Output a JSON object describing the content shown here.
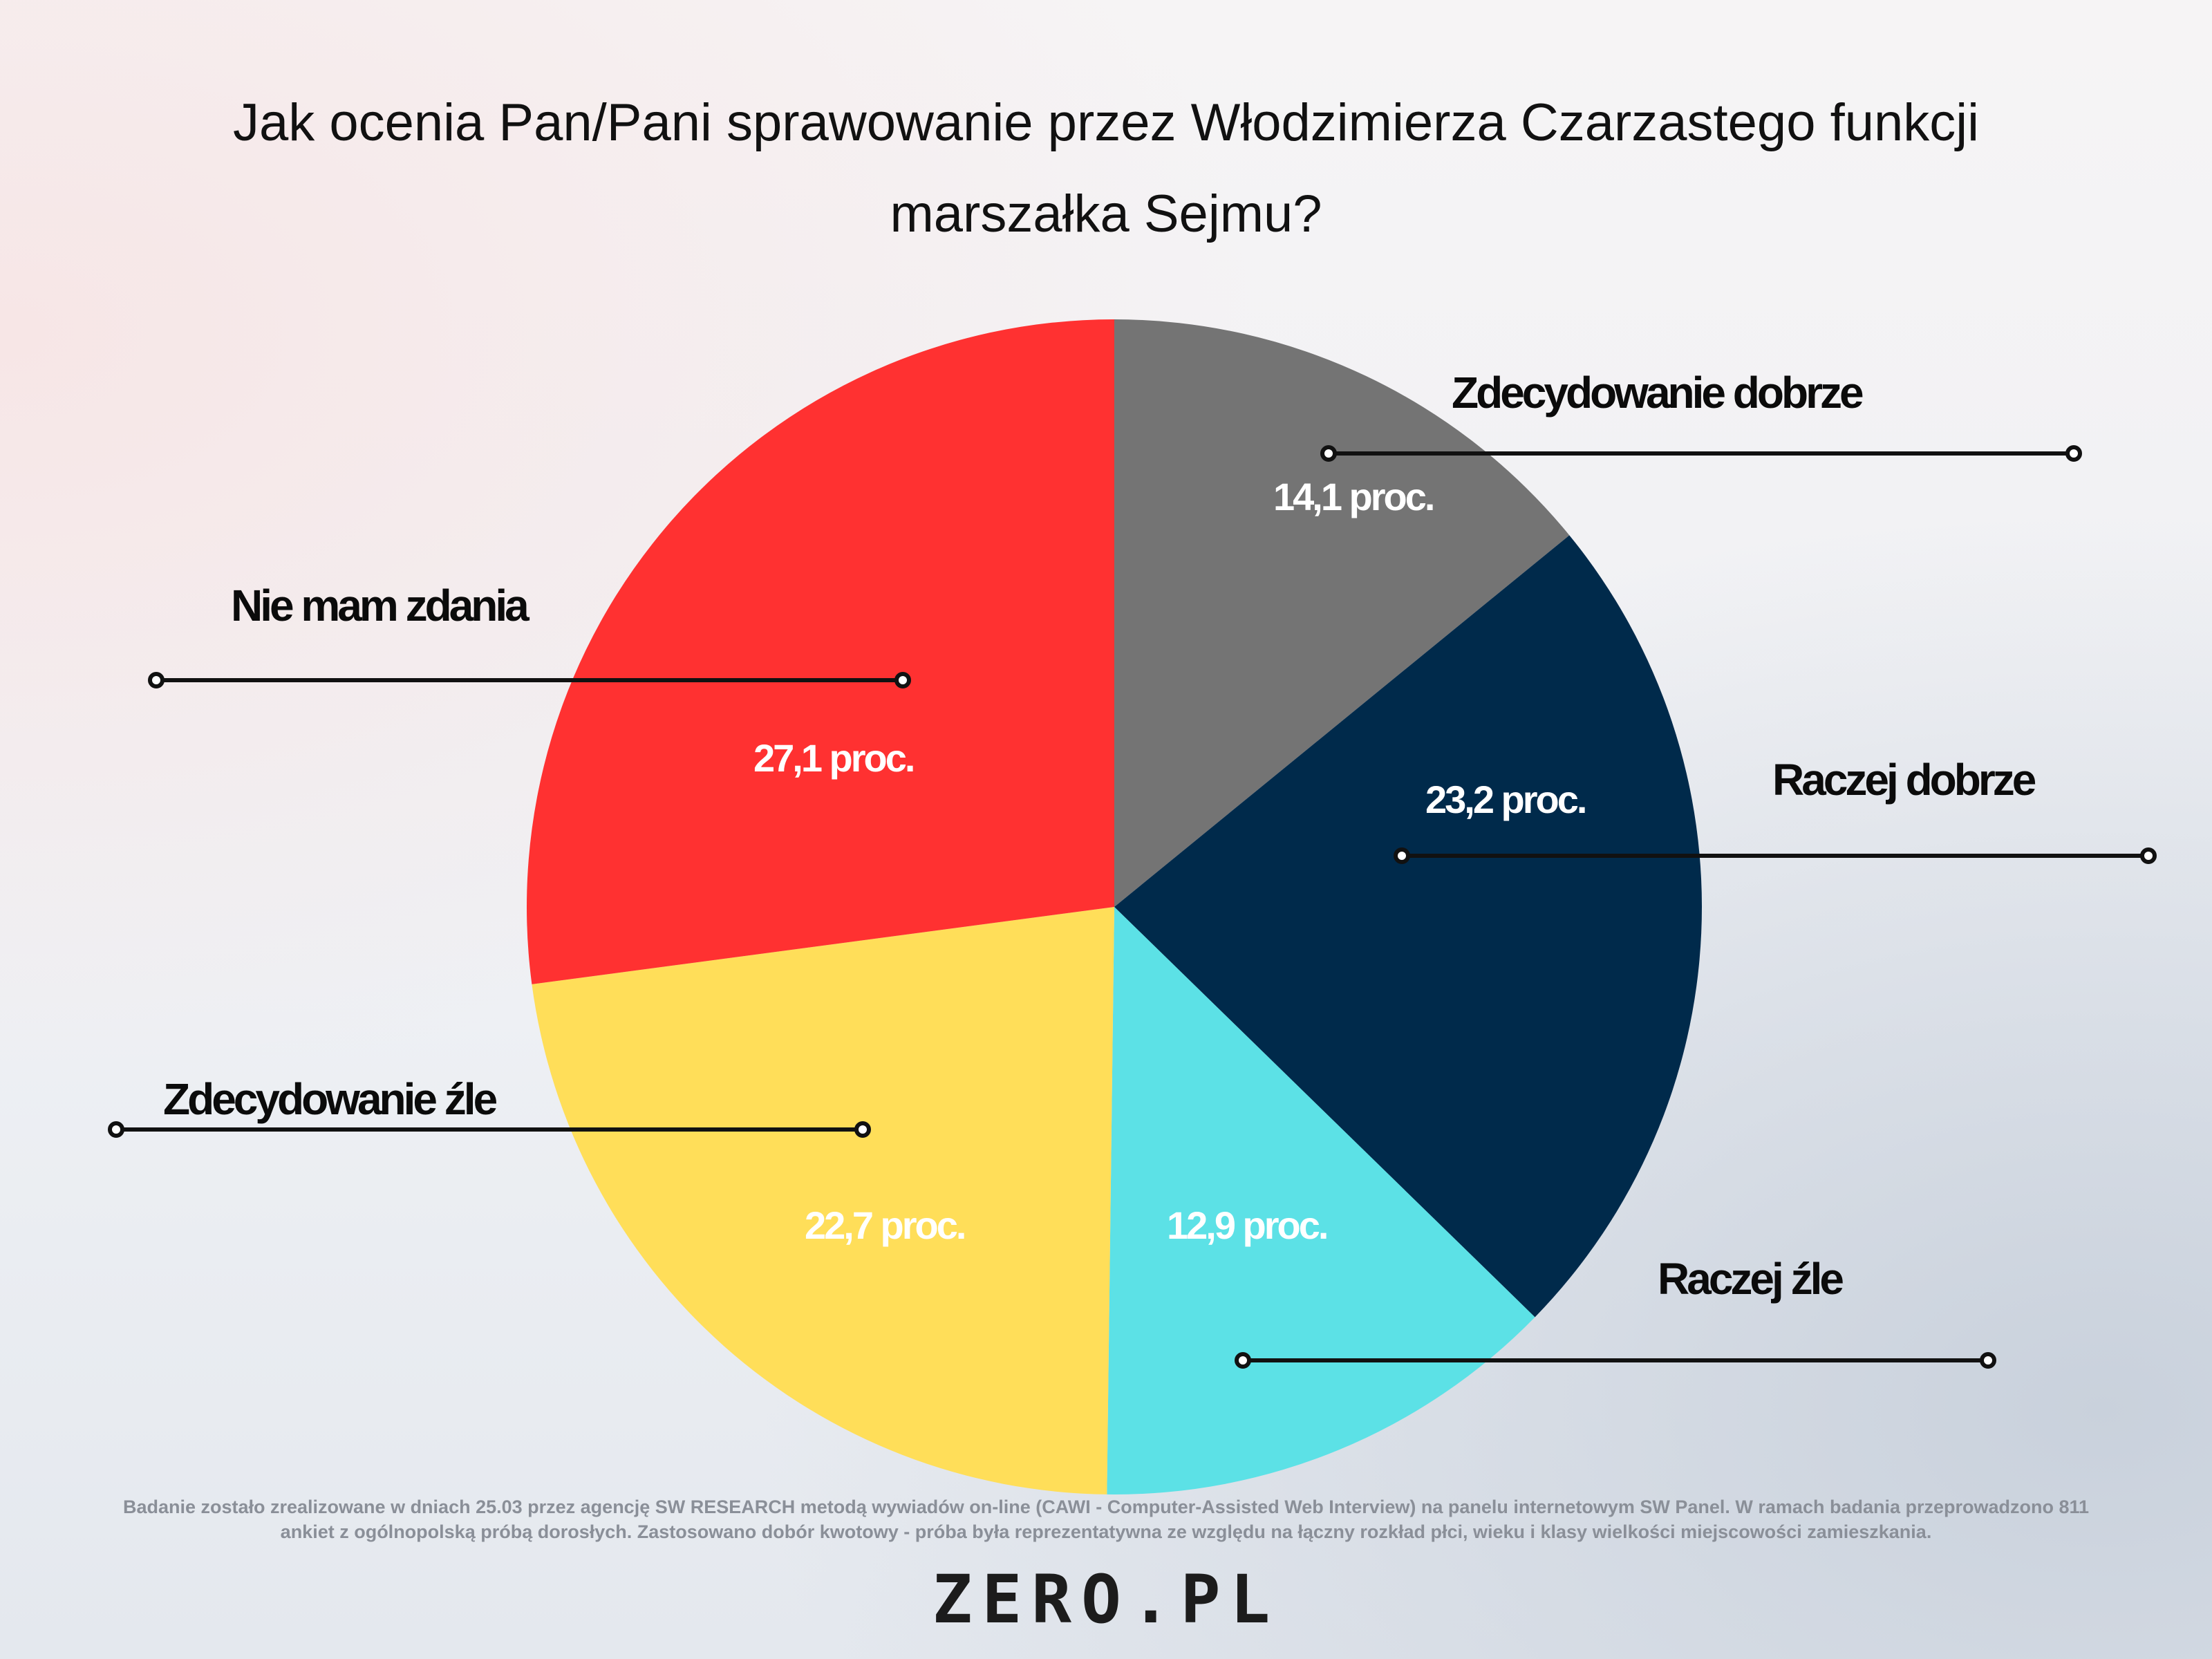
{
  "chart_data": {
    "type": "pie",
    "title": "Jak ocenia Pan/Pani sprawowanie przez Włodzimierza Czarzastego funkcji marszałka Sejmu?",
    "title_lines": [
      "Jak ocenia Pan/Pani sprawowanie przez Włodzimierza Czarzastego funkcji",
      "marszałka Sejmu?"
    ],
    "slices": [
      {
        "label": "Zdecydowanie dobrze",
        "value": 14.1,
        "value_label": "14,1 proc.",
        "color": "#747474"
      },
      {
        "label": "Raczej dobrze",
        "value": 23.2,
        "value_label": "23,2 proc.",
        "color": "#002a4b"
      },
      {
        "label": "Raczej źle",
        "value": 12.9,
        "value_label": "12,9 proc.",
        "color": "#5ce1e6"
      },
      {
        "label": "Zdecydowanie źle",
        "value": 22.7,
        "value_label": "22,7 proc.",
        "color": "#ffde59"
      },
      {
        "label": "Nie mam zdania",
        "value": 27.1,
        "value_label": "27,1 proc.",
        "color": "#ff3131"
      }
    ]
  },
  "footnote": {
    "line1": "Badanie zostało zrealizowane w dniach 25.03 przez agencję SW RESEARCH metodą wywiadów on-line (CAWI - Computer-Assisted Web Interview) na panelu internetowym SW Panel. W ramach badania przeprowadzono 811",
    "line2": "ankiet z ogólnopolską próbą dorosłych. Zastosowano dobór kwotowy - próba była reprezentatywna ze względu na łączny rozkład płci, wieku i klasy wielkości miejscowości zamieszkania."
  },
  "logo": {
    "left": "ZER",
    "right": ".PL"
  }
}
